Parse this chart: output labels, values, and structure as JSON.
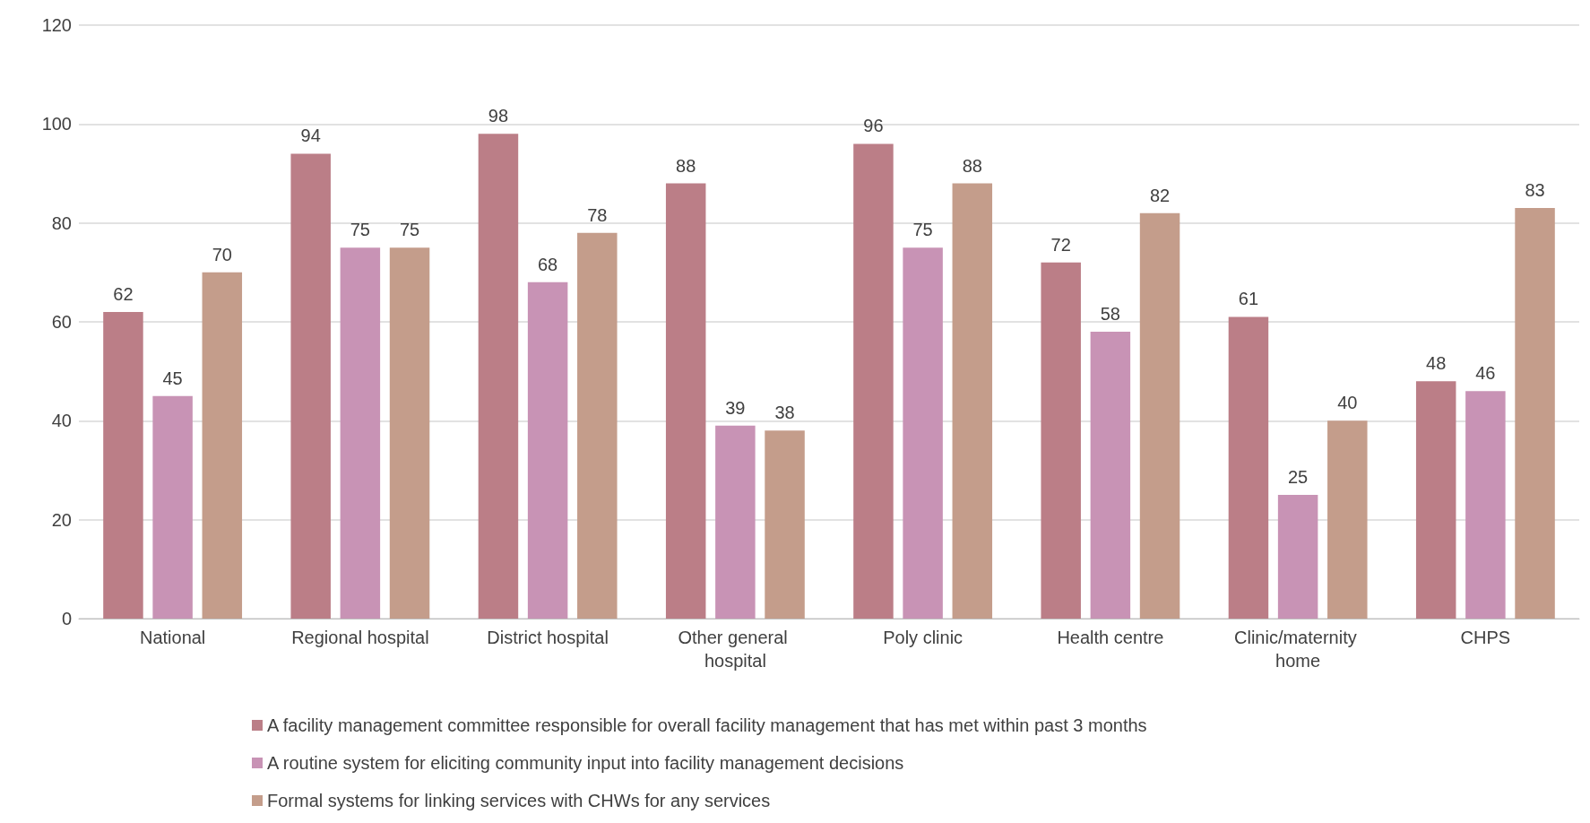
{
  "chart_data": {
    "type": "bar",
    "categories": [
      "National",
      "Regional hospital",
      "District hospital",
      "Other general hospital",
      "Poly clinic",
      "Health centre",
      "Clinic/maternity home",
      "CHPS"
    ],
    "series": [
      {
        "name": "A facility management committee responsible for overall facility management that has met within past 3 months",
        "color": "#bb7e87",
        "values": [
          62,
          94,
          98,
          88,
          96,
          72,
          61,
          48
        ]
      },
      {
        "name": "A routine system for eliciting community input into facility management decisions",
        "color": "#c893b5",
        "values": [
          45,
          75,
          68,
          39,
          75,
          58,
          25,
          46
        ]
      },
      {
        "name": "Formal systems for linking services with CHWs for any services",
        "color": "#c49d8b",
        "values": [
          70,
          75,
          78,
          38,
          88,
          82,
          40,
          83
        ]
      }
    ],
    "ylim": [
      0,
      120
    ],
    "yticks": [
      0,
      20,
      40,
      60,
      80,
      100,
      120
    ],
    "grid": "y",
    "legend": "bottom",
    "data_labels": true
  }
}
